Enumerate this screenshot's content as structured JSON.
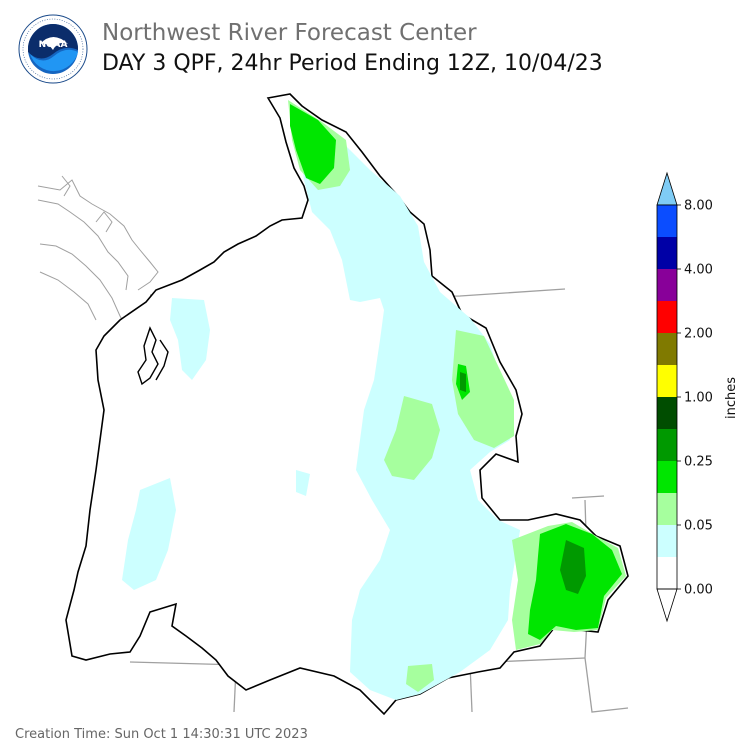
{
  "header": {
    "line1": "Northwest River Forecast Center",
    "line2": "DAY 3 QPF, 24hr Period Ending 12Z, 10/04/23"
  },
  "logo": {
    "text": "NOAA",
    "ring_text": "NATIONAL OCEANIC AND ATMOSPHERIC ADMINISTRATION · U.S. DEPARTMENT OF COMMERCE"
  },
  "colorbar": {
    "unit_label": "inches",
    "ticks": [
      "8.00",
      "4.00",
      "2.00",
      "1.00",
      "0.25",
      "0.05",
      "0.00"
    ],
    "bins": [
      {
        "color": "#ffffff"
      },
      {
        "color": "#ccffff"
      },
      {
        "color": "#a6ff9e"
      },
      {
        "color": "#00e600"
      },
      {
        "color": "#009900"
      },
      {
        "color": "#004d00"
      },
      {
        "color": "#ffff00"
      },
      {
        "color": "#807a00"
      },
      {
        "color": "#ff0000"
      },
      {
        "color": "#880099"
      },
      {
        "color": "#0000a6"
      },
      {
        "color": "#0b4dff"
      }
    ],
    "over_color": "#7fccf5",
    "under_color": "#ffffff"
  },
  "map": {
    "basin_outline_color": "#000000",
    "state_line_color": "#a0a0a0",
    "precip_colors": {
      "trace": "#ccffff",
      "light": "#a6ff9e",
      "moderate": "#00e600",
      "heavy": "#009900"
    }
  },
  "footer": {
    "creation_time": "Creation Time: Sun Oct 1 14:30:31 UTC 2023"
  }
}
